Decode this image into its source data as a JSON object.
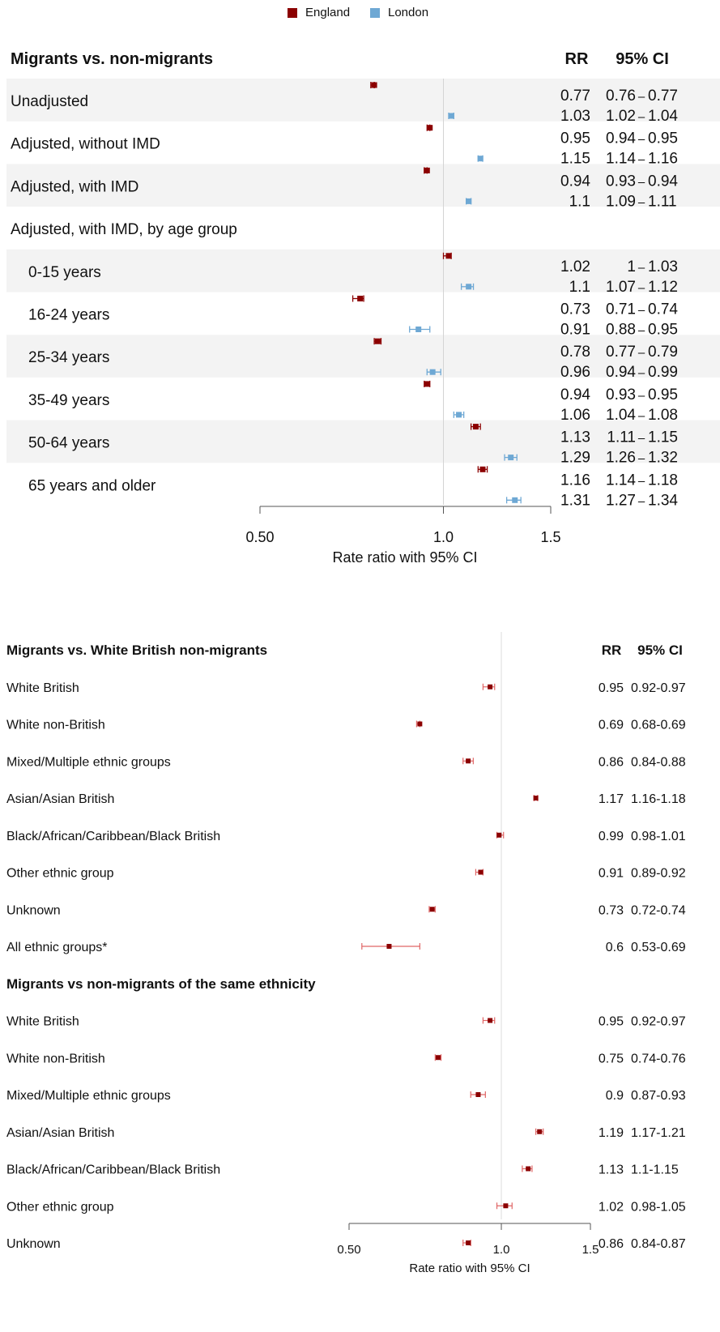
{
  "legend": {
    "entries": [
      {
        "name": "England",
        "color": "#8b0000"
      },
      {
        "name": "London",
        "color": "#6ea8d4"
      }
    ]
  },
  "chart_data": [
    {
      "type": "forest",
      "title": "Migrants vs. non-migrants",
      "col_rr": "RR",
      "col_ci": "95% CI",
      "xlabel": "Rate ratio with 95% CI",
      "x_scale": "log",
      "xlim": [
        0.5,
        1.5
      ],
      "ticks": [
        0.5,
        1.0,
        1.5
      ],
      "tick_labels": [
        "0.50",
        "1.0",
        "1.5"
      ],
      "reference_line": 1.0,
      "series": [
        {
          "name": "England",
          "color": "#8b0000"
        },
        {
          "name": "London",
          "color": "#6ea8d4"
        }
      ],
      "rows": [
        {
          "label": "Unadjusted",
          "indent": false,
          "shaded": true,
          "estimates": [
            {
              "series": "England",
              "rr": 0.77,
              "lo": 0.76,
              "hi": 0.77,
              "rr_text": "0.77",
              "ci_lo_text": "0.76",
              "ci_hi_text": "0.77"
            },
            {
              "series": "London",
              "rr": 1.03,
              "lo": 1.02,
              "hi": 1.04,
              "rr_text": "1.03",
              "ci_lo_text": "1.02",
              "ci_hi_text": "1.04"
            }
          ]
        },
        {
          "label": "Adjusted, without IMD",
          "indent": false,
          "shaded": false,
          "estimates": [
            {
              "series": "England",
              "rr": 0.95,
              "lo": 0.94,
              "hi": 0.95,
              "rr_text": "0.95",
              "ci_lo_text": "0.94",
              "ci_hi_text": "0.95"
            },
            {
              "series": "London",
              "rr": 1.15,
              "lo": 1.14,
              "hi": 1.16,
              "rr_text": "1.15",
              "ci_lo_text": "1.14",
              "ci_hi_text": "1.16"
            }
          ]
        },
        {
          "label": "Adjusted, with IMD",
          "indent": false,
          "shaded": true,
          "estimates": [
            {
              "series": "England",
              "rr": 0.94,
              "lo": 0.93,
              "hi": 0.94,
              "rr_text": "0.94",
              "ci_lo_text": "0.93",
              "ci_hi_text": "0.94"
            },
            {
              "series": "London",
              "rr": 1.1,
              "lo": 1.09,
              "hi": 1.11,
              "rr_text": "1.1",
              "ci_lo_text": "1.09",
              "ci_hi_text": "1.11"
            }
          ]
        },
        {
          "label": "Adjusted, with IMD, by age group",
          "indent": false,
          "shaded": false,
          "estimates": []
        },
        {
          "label": "0-15 years",
          "indent": true,
          "shaded": true,
          "estimates": [
            {
              "series": "England",
              "rr": 1.02,
              "lo": 1.0,
              "hi": 1.03,
              "rr_text": "1.02",
              "ci_lo_text": "1",
              "ci_hi_text": "1.03"
            },
            {
              "series": "London",
              "rr": 1.1,
              "lo": 1.07,
              "hi": 1.12,
              "rr_text": "1.1",
              "ci_lo_text": "1.07",
              "ci_hi_text": "1.12"
            }
          ]
        },
        {
          "label": "16-24 years",
          "indent": true,
          "shaded": false,
          "estimates": [
            {
              "series": "England",
              "rr": 0.73,
              "lo": 0.71,
              "hi": 0.74,
              "rr_text": "0.73",
              "ci_lo_text": "0.71",
              "ci_hi_text": "0.74"
            },
            {
              "series": "London",
              "rr": 0.91,
              "lo": 0.88,
              "hi": 0.95,
              "rr_text": "0.91",
              "ci_lo_text": "0.88",
              "ci_hi_text": "0.95"
            }
          ]
        },
        {
          "label": "25-34 years",
          "indent": true,
          "shaded": true,
          "estimates": [
            {
              "series": "England",
              "rr": 0.78,
              "lo": 0.77,
              "hi": 0.79,
              "rr_text": "0.78",
              "ci_lo_text": "0.77",
              "ci_hi_text": "0.79"
            },
            {
              "series": "London",
              "rr": 0.96,
              "lo": 0.94,
              "hi": 0.99,
              "rr_text": "0.96",
              "ci_lo_text": "0.94",
              "ci_hi_text": "0.99"
            }
          ]
        },
        {
          "label": "35-49 years",
          "indent": true,
          "shaded": false,
          "estimates": [
            {
              "series": "England",
              "rr": 0.94,
              "lo": 0.93,
              "hi": 0.95,
              "rr_text": "0.94",
              "ci_lo_text": "0.93",
              "ci_hi_text": "0.95"
            },
            {
              "series": "London",
              "rr": 1.06,
              "lo": 1.04,
              "hi": 1.08,
              "rr_text": "1.06",
              "ci_lo_text": "1.04",
              "ci_hi_text": "1.08"
            }
          ]
        },
        {
          "label": "50-64 years",
          "indent": true,
          "shaded": true,
          "estimates": [
            {
              "series": "England",
              "rr": 1.13,
              "lo": 1.11,
              "hi": 1.15,
              "rr_text": "1.13",
              "ci_lo_text": "1.11",
              "ci_hi_text": "1.15"
            },
            {
              "series": "London",
              "rr": 1.29,
              "lo": 1.26,
              "hi": 1.32,
              "rr_text": "1.29",
              "ci_lo_text": "1.26",
              "ci_hi_text": "1.32"
            }
          ]
        },
        {
          "label": "65 years and older",
          "indent": true,
          "shaded": false,
          "estimates": [
            {
              "series": "England",
              "rr": 1.16,
              "lo": 1.14,
              "hi": 1.18,
              "rr_text": "1.16",
              "ci_lo_text": "1.14",
              "ci_hi_text": "1.18"
            },
            {
              "series": "London",
              "rr": 1.31,
              "lo": 1.27,
              "hi": 1.34,
              "rr_text": "1.31",
              "ci_lo_text": "1.27",
              "ci_hi_text": "1.34"
            }
          ]
        }
      ]
    },
    {
      "type": "forest",
      "title": "Migrants vs. White British non-migrants",
      "col_rr": "RR",
      "col_ci": "95% CI",
      "xlabel": "Rate ratio with 95% CI",
      "x_scale": "log",
      "xlim": [
        0.5,
        1.5
      ],
      "ticks": [
        0.5,
        1.0,
        1.5
      ],
      "tick_labels": [
        "0.50",
        "1.0",
        "1.5"
      ],
      "reference_line": 1.0,
      "color": "#8b0000",
      "rows": [
        {
          "label": "White British",
          "rr": 0.95,
          "lo": 0.92,
          "hi": 0.97,
          "rr_text": "0.95",
          "ci_text": "0.92-0.97"
        },
        {
          "label": "White non-British",
          "rr": 0.69,
          "lo": 0.68,
          "hi": 0.69,
          "rr_text": "0.69",
          "ci_text": "0.68-0.69"
        },
        {
          "label": "Mixed/Multiple ethnic groups",
          "rr": 0.86,
          "lo": 0.84,
          "hi": 0.88,
          "rr_text": "0.86",
          "ci_text": "0.84-0.88"
        },
        {
          "label": "Asian/Asian British",
          "rr": 1.17,
          "lo": 1.16,
          "hi": 1.18,
          "rr_text": "1.17",
          "ci_text": "1.16-1.18"
        },
        {
          "label": "Black/African/Caribbean/Black British",
          "rr": 0.99,
          "lo": 0.98,
          "hi": 1.01,
          "rr_text": "0.99",
          "ci_text": "0.98-1.01"
        },
        {
          "label": "Other ethnic group",
          "rr": 0.91,
          "lo": 0.89,
          "hi": 0.92,
          "rr_text": "0.91",
          "ci_text": "0.89-0.92"
        },
        {
          "label": "Unknown",
          "rr": 0.73,
          "lo": 0.72,
          "hi": 0.74,
          "rr_text": "0.73",
          "ci_text": "0.72-0.74"
        },
        {
          "label": "All ethnic groups*",
          "rr": 0.6,
          "lo": 0.53,
          "hi": 0.69,
          "rr_text": "0.6",
          "ci_text": "0.53-0.69"
        },
        {
          "label": "Migrants vs non-migrants of the same ethnicity",
          "heading": true
        },
        {
          "label": "White British",
          "rr": 0.95,
          "lo": 0.92,
          "hi": 0.97,
          "rr_text": "0.95",
          "ci_text": "0.92-0.97"
        },
        {
          "label": "White non-British",
          "rr": 0.75,
          "lo": 0.74,
          "hi": 0.76,
          "rr_text": "0.75",
          "ci_text": "0.74-0.76"
        },
        {
          "label": "Mixed/Multiple ethnic groups",
          "rr": 0.9,
          "lo": 0.87,
          "hi": 0.93,
          "rr_text": "0.9",
          "ci_text": "0.87-0.93"
        },
        {
          "label": "Asian/Asian British",
          "rr": 1.19,
          "lo": 1.17,
          "hi": 1.21,
          "rr_text": "1.19",
          "ci_text": "1.17-1.21"
        },
        {
          "label": "Black/African/Caribbean/Black British",
          "rr": 1.13,
          "lo": 1.1,
          "hi": 1.15,
          "rr_text": "1.13",
          "ci_text": "1.1-1.15"
        },
        {
          "label": "Other ethnic group",
          "rr": 1.02,
          "lo": 0.98,
          "hi": 1.05,
          "rr_text": "1.02",
          "ci_text": "0.98-1.05"
        },
        {
          "label": "Unknown",
          "rr": 0.86,
          "lo": 0.84,
          "hi": 0.87,
          "rr_text": "0.86",
          "ci_text": "0.84-0.87"
        }
      ]
    }
  ]
}
